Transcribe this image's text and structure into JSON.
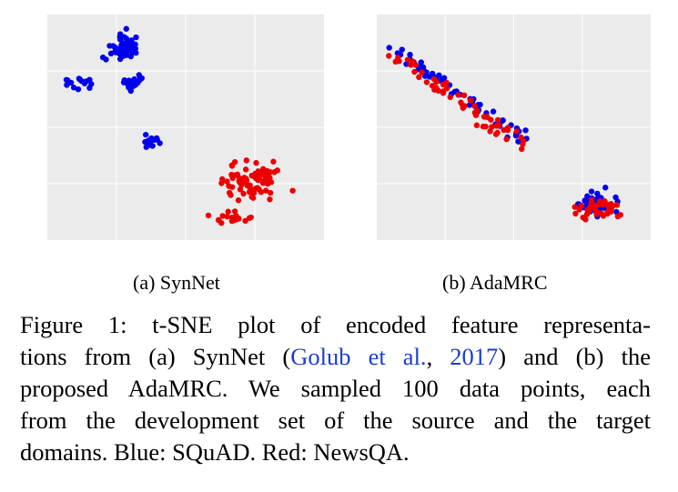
{
  "figure": {
    "panels": [
      {
        "id": "a",
        "label": "(a) SynNet"
      },
      {
        "id": "b",
        "label": "(b) AdaMRC"
      }
    ],
    "caption": {
      "line1": "Figure 1:  t-SNE plot of encoded feature representa-",
      "line2_pre": "tions from (a) SynNet (",
      "cite_author": "Golub et al.",
      "cite_sep": ", ",
      "cite_year": "2017",
      "line2_post": ") and (b) the",
      "line3": "proposed AdaMRC. We sampled 100 data points, each",
      "line4": "from the development set of the source and the target",
      "line5": "domains. Blue: SQuAD. Red: NewsQA."
    }
  },
  "chart_data": [
    {
      "type": "scatter",
      "panel": "a",
      "xlim": [
        0,
        100
      ],
      "ylim": [
        0,
        100
      ],
      "grid": true,
      "series": [
        {
          "color": "#0000ee",
          "clusters": [
            {
              "cx": 28,
              "cy": 14,
              "rx": 10,
              "ry": 9,
              "n": 48
            },
            {
              "cx": 32,
              "cy": 30,
              "rx": 7,
              "ry": 6,
              "n": 22
            },
            {
              "cx": 12,
              "cy": 30,
              "rx": 8,
              "ry": 4,
              "n": 14
            },
            {
              "cx": 38,
              "cy": 56,
              "rx": 5,
              "ry": 4,
              "n": 16
            }
          ]
        },
        {
          "color": "#ee0000",
          "clusters": [
            {
              "cx": 75,
              "cy": 74,
              "rx": 17,
              "ry": 12,
              "n": 80
            },
            {
              "cx": 68,
              "cy": 90,
              "rx": 12,
              "ry": 4,
              "n": 20
            }
          ]
        }
      ]
    },
    {
      "type": "scatter",
      "panel": "b",
      "xlim": [
        0,
        100
      ],
      "ylim": [
        0,
        100
      ],
      "grid": true,
      "series": [
        {
          "color": "#0000ee",
          "clusters": [
            {
              "cx": 30,
              "cy": 35,
              "rx": 24,
              "ry": 20,
              "n": 62,
              "diag": true
            },
            {
              "cx": 80,
              "cy": 84,
              "rx": 14,
              "ry": 9,
              "n": 38
            }
          ]
        },
        {
          "color": "#ee0000",
          "clusters": [
            {
              "cx": 30,
              "cy": 38,
              "rx": 24,
              "ry": 20,
              "n": 60,
              "diag": true
            },
            {
              "cx": 80,
              "cy": 86,
              "rx": 14,
              "ry": 9,
              "n": 40
            }
          ]
        }
      ]
    }
  ]
}
